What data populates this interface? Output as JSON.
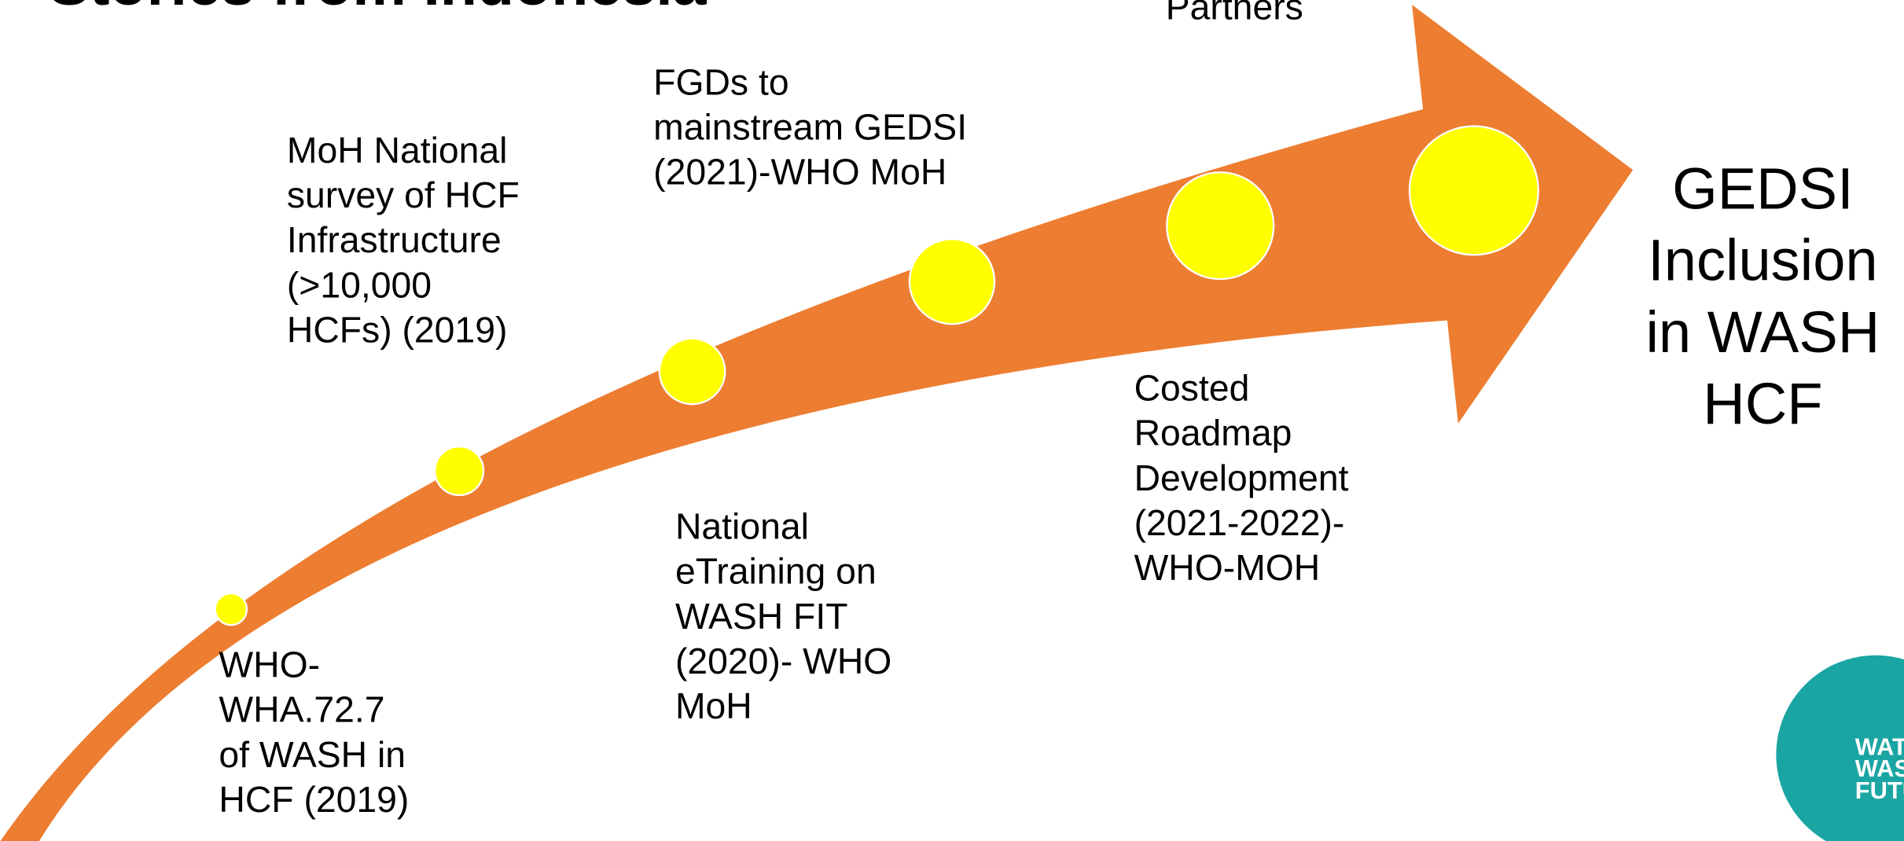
{
  "title": "Stories from Indonesia",
  "top_label": "Partners",
  "milestones": [
    {
      "lines": [
        "WHO-",
        "WHA.72.7",
        "of WASH in",
        "HCF (2019)"
      ]
    },
    {
      "lines": [
        "MoH National",
        "survey of HCF",
        "Infrastructure",
        "(>10,000",
        "HCFs) (2019)"
      ]
    },
    {
      "lines": [
        "National",
        "eTraining on",
        "WASH FIT",
        "(2020)- WHO",
        "MoH"
      ]
    },
    {
      "lines": [
        "FGDs to",
        "mainstream GEDSI",
        "(2021)-WHO MoH"
      ]
    },
    {
      "lines": [
        "Costed",
        "Roadmap",
        "Development",
        "(2021-2022)-",
        "WHO-MOH"
      ]
    }
  ],
  "goal": {
    "lines": [
      "GEDSI",
      "Inclusion",
      "in WASH",
      "HCF"
    ]
  },
  "logo": {
    "lines": [
      "WATER",
      "WASH",
      "FUTURES"
    ]
  }
}
